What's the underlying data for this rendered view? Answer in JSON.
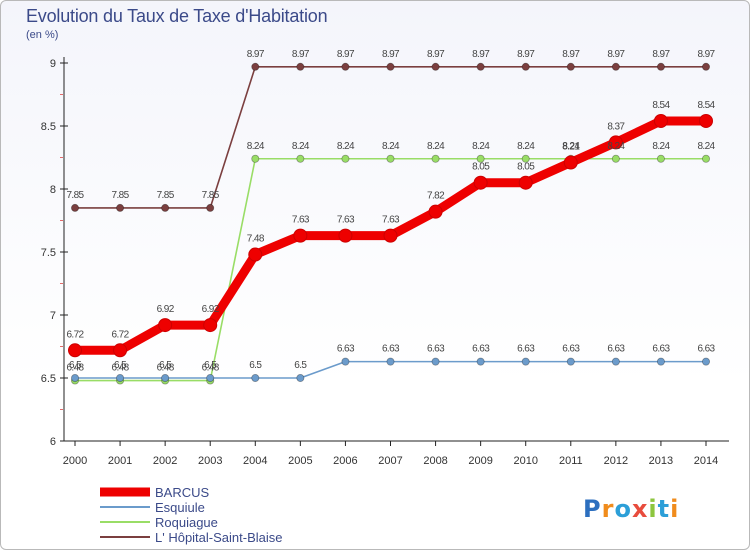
{
  "chart_data": {
    "type": "line",
    "title": "Evolution du Taux de Taxe d'Habitation",
    "subtitle": "(en %)",
    "xlabel": "",
    "ylabel": "",
    "x": [
      "2000",
      "2001",
      "2002",
      "2003",
      "2004",
      "2005",
      "2006",
      "2007",
      "2008",
      "2009",
      "2010",
      "2011",
      "2012",
      "2013",
      "2014"
    ],
    "ylim": [
      6,
      9
    ],
    "yticks": [
      6,
      6.5,
      7,
      7.5,
      8,
      8.5,
      9
    ],
    "ytick_labels": [
      "6",
      "6.5",
      "7",
      "7.5",
      "8",
      "8.5",
      "9"
    ],
    "grid": false,
    "legend_position": "bottom-left",
    "series": [
      {
        "name": "BARCUS",
        "color": "#ee0000",
        "values": [
          6.72,
          6.72,
          6.92,
          6.92,
          7.48,
          7.63,
          7.63,
          7.63,
          7.82,
          8.05,
          8.05,
          8.21,
          8.37,
          8.54,
          8.54
        ],
        "labels": [
          "6.72",
          "6.72",
          "6.92",
          "6.92",
          "7.48",
          "7.63",
          "7.63",
          "7.63",
          "7.82",
          "8.05",
          "8.05",
          "8.21",
          "8.37",
          "8.54",
          "8.54"
        ]
      },
      {
        "name": "Esquiule",
        "color": "#6b9bcb",
        "values": [
          6.5,
          6.5,
          6.5,
          6.5,
          6.5,
          6.5,
          6.63,
          6.63,
          6.63,
          6.63,
          6.63,
          6.63,
          6.63,
          6.63,
          6.63
        ],
        "labels": [
          "6.5",
          "6.5",
          "6.5",
          "6.5",
          "6.5",
          "6.5",
          "6.63",
          "6.63",
          "6.63",
          "6.63",
          "6.63",
          "6.63",
          "6.63",
          "6.63",
          "6.63"
        ]
      },
      {
        "name": "Roquiague",
        "color": "#99dd66",
        "values": [
          6.48,
          6.48,
          6.48,
          6.48,
          8.24,
          8.24,
          8.24,
          8.24,
          8.24,
          8.24,
          8.24,
          8.24,
          8.24,
          8.24,
          8.24
        ],
        "labels": [
          "6.48",
          "6.48",
          "6.48",
          "6.48",
          "8.24",
          "8.24",
          "8.24",
          "8.24",
          "8.24",
          "8.24",
          "8.24",
          "8.24",
          "8.24",
          "8.24",
          "8.24"
        ]
      },
      {
        "name": "L' Hôpital-Saint-Blaise",
        "color": "#7b3f3f",
        "values": [
          7.85,
          7.85,
          7.85,
          7.85,
          8.97,
          8.97,
          8.97,
          8.97,
          8.97,
          8.97,
          8.97,
          8.97,
          8.97,
          8.97,
          8.97
        ],
        "labels": [
          "7.85",
          "7.85",
          "7.85",
          "7.85",
          "8.97",
          "8.97",
          "8.97",
          "8.97",
          "8.97",
          "8.97",
          "8.97",
          "8.97",
          "8.97",
          "8.97",
          "8.97"
        ]
      }
    ]
  },
  "branding": {
    "logo_text": "Proxiti",
    "logo_letters": [
      "P",
      "r",
      "o",
      "x",
      "i",
      "t",
      "i"
    ],
    "logo_colors": [
      "#2c6fbf",
      "#f08c1c",
      "#2c9fd8",
      "#e84c3d",
      "#8dc63f",
      "#2c9fd8",
      "#f08c1c"
    ]
  }
}
